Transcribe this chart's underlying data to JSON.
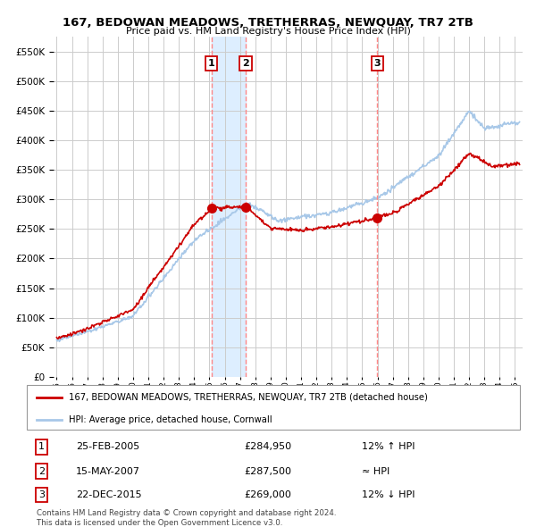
{
  "title": "167, BEDOWAN MEADOWS, TRETHERRAS, NEWQUAY, TR7 2TB",
  "subtitle": "Price paid vs. HM Land Registry's House Price Index (HPI)",
  "ytick_values": [
    0,
    50000,
    100000,
    150000,
    200000,
    250000,
    300000,
    350000,
    400000,
    450000,
    500000,
    550000
  ],
  "xlim_start": 1994.8,
  "xlim_end": 2025.5,
  "ylim_min": 0,
  "ylim_max": 575000,
  "sale_dates": [
    2005.14,
    2007.37,
    2015.98
  ],
  "sale_prices": [
    284950,
    287500,
    269000
  ],
  "sale_labels": [
    "1",
    "2",
    "3"
  ],
  "vline_dates": [
    2005.14,
    2007.37,
    2015.98
  ],
  "shade_between": [
    2005.14,
    2007.37
  ],
  "hpi_color": "#a8c8e8",
  "sale_line_color": "#cc0000",
  "vline_color": "#ff8888",
  "shade_color": "#ddeeff",
  "background_color": "#ffffff",
  "grid_color": "#cccccc",
  "legend_box_color": "#888888",
  "legend_entries": [
    "167, BEDOWAN MEADOWS, TRETHERRAS, NEWQUAY, TR7 2TB (detached house)",
    "HPI: Average price, detached house, Cornwall"
  ],
  "table_data": [
    [
      "1",
      "25-FEB-2005",
      "£284,950",
      "12% ↑ HPI"
    ],
    [
      "2",
      "15-MAY-2007",
      "£287,500",
      "≈ HPI"
    ],
    [
      "3",
      "22-DEC-2015",
      "£269,000",
      "12% ↓ HPI"
    ]
  ],
  "footnote1": "Contains HM Land Registry data © Crown copyright and database right 2024.",
  "footnote2": "This data is licensed under the Open Government Licence v3.0."
}
